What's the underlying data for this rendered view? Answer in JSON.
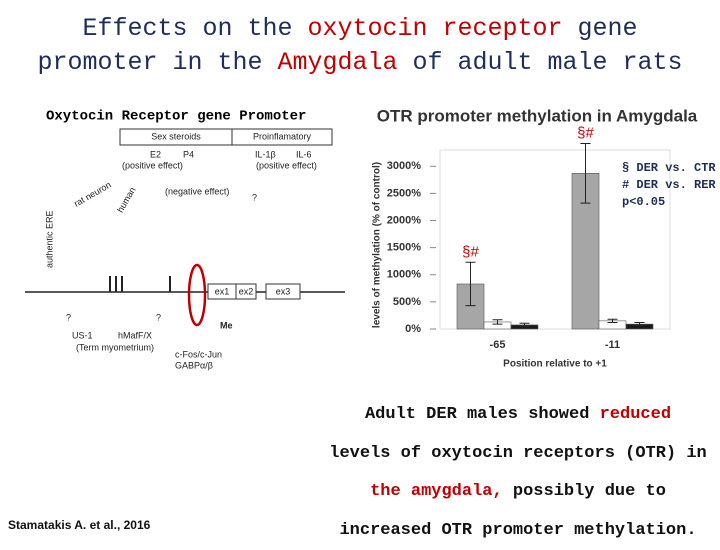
{
  "header": {
    "title": {
      "lines": [
        [
          {
            "text": "Effects on the "
          },
          {
            "text": "oxytocin receptor",
            "color": "#c00000"
          },
          {
            "text": " gene"
          }
        ],
        [
          {
            "text": "promoter in the "
          },
          {
            "text": "Amygdala",
            "color": "#c00000"
          },
          {
            "text": " of adult male rats"
          }
        ]
      ]
    }
  },
  "diagram": {
    "title": "Oxytocin Receptor gene Promoter",
    "labels": [
      "Sex steroids",
      "Proinflamatory",
      "E2",
      "P4",
      "(positive effect)",
      "IL-1β",
      "IL-6",
      "(positive effect)",
      "(negative effect)",
      "rat neuron",
      "human",
      "authentic ERE",
      "ex1",
      "ex2",
      "ex3",
      "US-1",
      "hMafF/X",
      "(Term myometrium)",
      "c-Fos/c-Jun",
      "GABPα/β",
      "Me",
      "?",
      "?",
      "?"
    ]
  },
  "chart_data": {
    "type": "bar",
    "title": "OTR promoter methylation in Amygdala",
    "y_label": "levels of methylation (% of control)",
    "x_label": "Position relative to +1",
    "categories": [
      "-65",
      "-11"
    ],
    "series": [
      {
        "color": "#a6a6a6",
        "values": [
          830,
          2870
        ],
        "errors": [
          400,
          550
        ]
      },
      {
        "color": "#ffffff",
        "values": [
          130,
          150
        ],
        "errors": [
          40,
          30
        ]
      },
      {
        "color": "#1a1a1a",
        "values": [
          75,
          90
        ],
        "errors": [
          30,
          30
        ]
      }
    ],
    "ylim": [
      0,
      3300
    ],
    "yticks": [
      {
        "value": 0,
        "label": "0%"
      },
      {
        "value": 500,
        "label": "500%"
      },
      {
        "value": 1000,
        "label": "1000%"
      },
      {
        "value": 1500,
        "label": "1500%"
      },
      {
        "value": 2000,
        "label": "2000%"
      },
      {
        "value": 2500,
        "label": "2500%"
      },
      {
        "value": 3000,
        "label": "3000%"
      }
    ],
    "annotations": [
      "§#",
      "§#"
    ],
    "note": [
      "§ DER vs. CTR",
      "# DER vs. RER",
      "p<0.05"
    ]
  },
  "caption": {
    "lines": [
      [
        {
          "text": "Adult DER males showed "
        },
        {
          "text": "reduced",
          "color": "#c00000"
        }
      ],
      [
        {
          "text": "levels of oxytocin receptors (OTR) in"
        }
      ],
      [
        {
          "text": "the amygdala,",
          "color": "#c00000"
        },
        {
          "text": " possibly due to"
        }
      ],
      [
        {
          "text": "increased OTR promoter methylation."
        }
      ]
    ]
  },
  "citation": "Stamatakis A. et al., 2016"
}
